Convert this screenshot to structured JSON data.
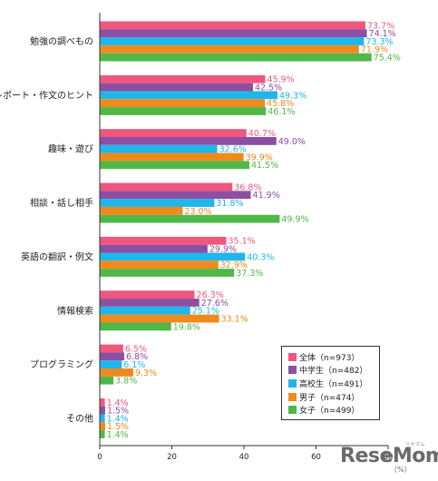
{
  "chart_data": {
    "type": "bar",
    "orientation": "horizontal",
    "categories": [
      "勉強の調べもの",
      "レポート・作文のヒント",
      "趣味・遊び",
      "相談・話し相手",
      "英語の翻訳・例文",
      "情報検索",
      "プログラミング",
      "その他"
    ],
    "series": [
      {
        "name": "全体（n=973）",
        "color": "#f0577e",
        "values": [
          73.7,
          45.9,
          40.7,
          36.8,
          35.1,
          26.3,
          6.5,
          1.4
        ]
      },
      {
        "name": "中学生（n=482）",
        "color": "#8c4fa3",
        "values": [
          74.1,
          42.5,
          49.0,
          41.9,
          29.9,
          27.6,
          6.8,
          1.5
        ]
      },
      {
        "name": "高校生（n=491）",
        "color": "#1fb6ea",
        "values": [
          73.3,
          49.3,
          32.6,
          31.8,
          40.3,
          25.1,
          6.1,
          1.4
        ]
      },
      {
        "name": "男子（n=474）",
        "color": "#f08a1c",
        "values": [
          71.9,
          45.8,
          39.9,
          23.0,
          32.9,
          33.1,
          9.3,
          1.5
        ]
      },
      {
        "name": "女子（n=499）",
        "color": "#4fb848",
        "values": [
          75.4,
          46.1,
          41.5,
          49.9,
          37.3,
          19.8,
          3.8,
          1.4
        ]
      }
    ],
    "value_labels": [
      [
        "73.7%",
        "45.9%",
        "40.7%",
        "36.8%",
        "35.1%",
        "26.3%",
        "6.5%",
        "1.4%"
      ],
      [
        "74.1%",
        "42.5%",
        "49.0%",
        "41.9%",
        "29.9%",
        "27.6%",
        "6.8%",
        "1.5%"
      ],
      [
        "73.3%",
        "49.3%",
        "32.6%",
        "31.8%",
        "40.3%",
        "25.1%",
        "6.1%",
        "1.4%"
      ],
      [
        "71.9%",
        "45.8%",
        "39.9%",
        "23.0%",
        "32.9%",
        "33.1%",
        "9.3%",
        "1.5%"
      ],
      [
        "75.4%",
        "46.1%",
        "41.5%",
        "49.9%",
        "37.3%",
        "19.8%",
        "3.8%",
        "1.4%"
      ]
    ],
    "xlim": [
      0,
      80
    ],
    "xticks": [
      "0",
      "20",
      "40",
      "60",
      "80"
    ],
    "unit": "（%）",
    "legend_position": "bottom-right",
    "grid": false
  },
  "watermark": {
    "text": "ReseMom",
    "kana": "リセマム"
  }
}
